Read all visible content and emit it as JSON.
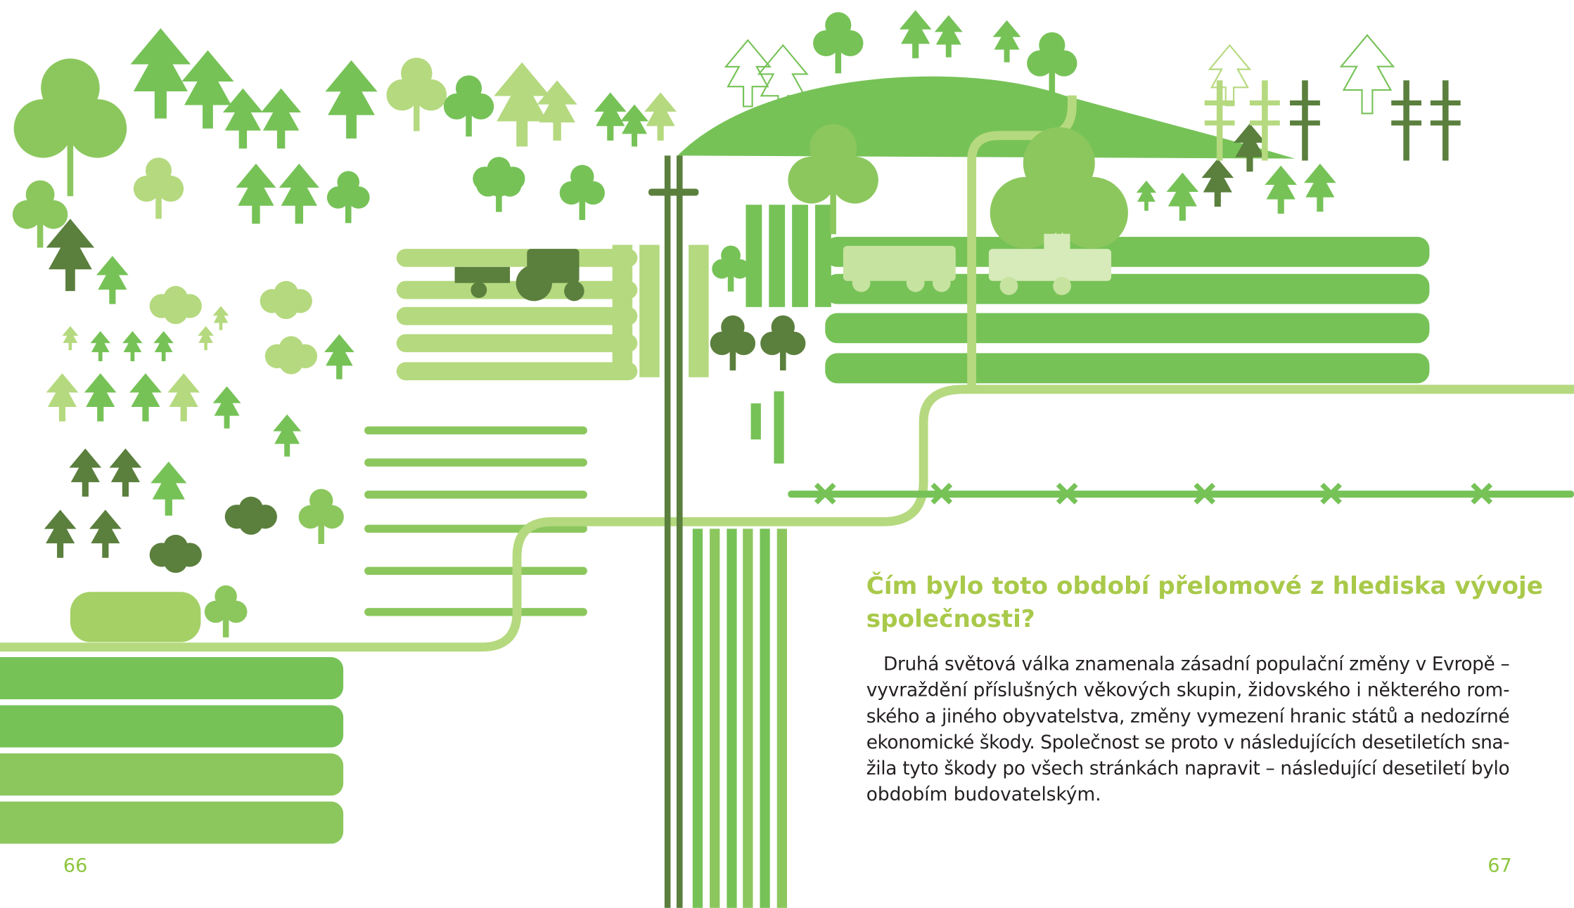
{
  "heading": [
    "Čím bylo toto období přelomové z hlediska vývoje",
    "společnosti?"
  ],
  "paragraph": [
    "Druhá světová válka znamenala zásadní populační změny v Evropě –",
    "vyvraždění příslušných věkových skupin, židovského i některého rom-",
    "ského a jiného obyvatelstva, změny vymezení hranic států a nedozírné",
    "ekonomické škody. Společnost se proto v následujících desetiletích sna-",
    "žila tyto škody po všech stránkách napravit – následující desetiletí bylo",
    "obdobím budovatelským."
  ],
  "page_numbers": {
    "left": "66",
    "right": "67"
  }
}
